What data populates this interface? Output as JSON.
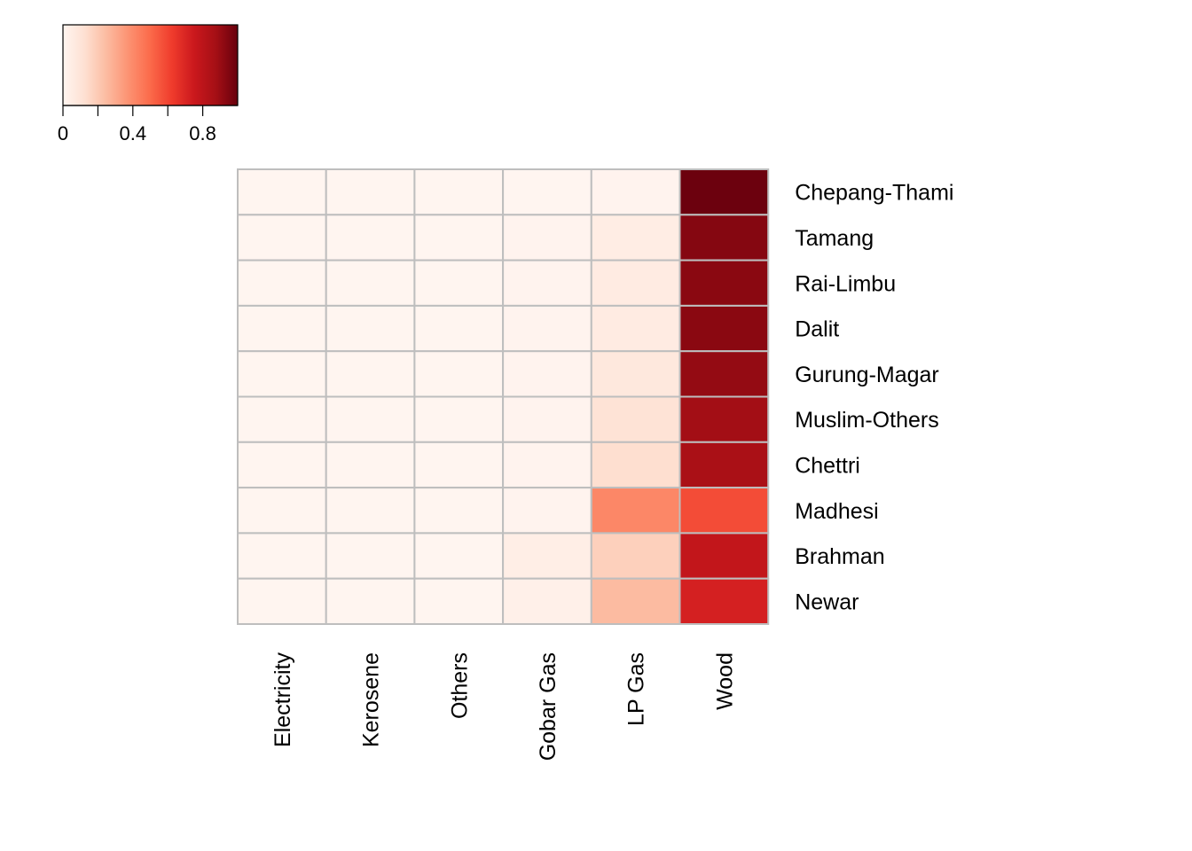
{
  "chart_data": {
    "type": "heatmap",
    "title": "",
    "xlabel": "",
    "ylabel": "",
    "rows": [
      "Chepang-Thami",
      "Tamang",
      "Rai-Limbu",
      "Dalit",
      "Gurung-Magar",
      "Muslim-Others",
      "Chettri",
      "Madhesi",
      "Brahman",
      "Newar"
    ],
    "columns": [
      "Electricity",
      "Kerosene",
      "Others",
      "Gobar Gas",
      "LP Gas",
      "Wood"
    ],
    "values": [
      [
        0.0,
        0.0,
        0.0,
        0.0,
        0.01,
        0.99
      ],
      [
        0.0,
        0.0,
        0.0,
        0.01,
        0.05,
        0.94
      ],
      [
        0.0,
        0.0,
        0.0,
        0.01,
        0.06,
        0.93
      ],
      [
        0.0,
        0.0,
        0.0,
        0.01,
        0.06,
        0.93
      ],
      [
        0.0,
        0.0,
        0.0,
        0.01,
        0.08,
        0.91
      ],
      [
        0.0,
        0.0,
        0.0,
        0.01,
        0.11,
        0.88
      ],
      [
        0.0,
        0.0,
        0.0,
        0.01,
        0.13,
        0.86
      ],
      [
        0.0,
        0.0,
        0.0,
        0.01,
        0.41,
        0.58
      ],
      [
        0.0,
        0.0,
        0.0,
        0.04,
        0.18,
        0.78
      ],
      [
        0.0,
        0.0,
        0.0,
        0.03,
        0.25,
        0.72
      ]
    ],
    "colorscale": {
      "name": "Reds",
      "range": [
        0,
        1
      ],
      "stops": [
        "#fff5f0",
        "#fee0d2",
        "#fcbba1",
        "#fc9272",
        "#fb6a4a",
        "#ef3b2c",
        "#cb181d",
        "#a50f15",
        "#67000d"
      ]
    },
    "legend": {
      "placement": "top-left",
      "ticks": [
        0,
        0.2,
        0.4,
        0.6,
        0.8
      ],
      "tick_labels": [
        "0",
        "",
        "0.4",
        "",
        "0.8"
      ]
    },
    "grid_color": "#bebebe"
  }
}
